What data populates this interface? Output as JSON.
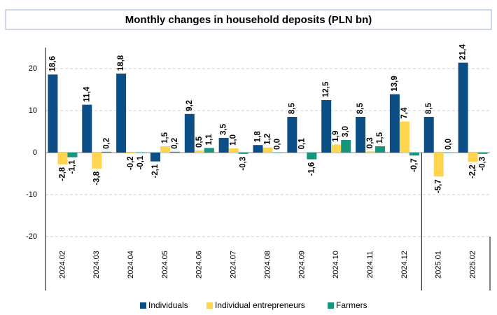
{
  "chart_data": {
    "type": "bar",
    "title": "Monthly changes in household deposits (PLN bn)",
    "categories": [
      "2024.02",
      "2024.03",
      "2024.04",
      "2024.05",
      "2024.06",
      "2024.07",
      "2024.08",
      "2024.09",
      "2024.10",
      "2024.11",
      "2024.12",
      "2025.01",
      "2025.02"
    ],
    "series": [
      {
        "name": "Individuals",
        "color": "#0b4f86",
        "values": [
          18.6,
          11.4,
          18.8,
          -2.1,
          9.2,
          3.5,
          1.8,
          8.5,
          12.5,
          8.5,
          13.9,
          8.5,
          21.4
        ],
        "value_labels": [
          "18,6",
          "11,4",
          "18,8",
          "-2,1",
          "9,2",
          "3,5",
          "1,8",
          "8,5",
          "12,5",
          "8,5",
          "13,9",
          "8,5",
          "21,4"
        ]
      },
      {
        "name": "Individual entrepreneurs",
        "color": "#ffd44f",
        "values": [
          -2.8,
          -3.8,
          -0.2,
          1.5,
          0.5,
          1.0,
          1.2,
          0.1,
          1.9,
          0.3,
          7.4,
          -5.7,
          -2.2
        ],
        "value_labels": [
          "-2,8",
          "-3,8",
          "-0,2",
          "1,5",
          "0,5",
          "1,0",
          "1,2",
          "0,1",
          "1,9",
          "0,3",
          "7,4",
          "-5,7",
          "-2,2"
        ]
      },
      {
        "name": "Farmers",
        "color": "#17957a",
        "values": [
          -1.1,
          0.2,
          -0.1,
          0.2,
          1.1,
          -0.3,
          0.0,
          -1.6,
          3.0,
          1.5,
          -0.7,
          0.0,
          -0.3
        ],
        "value_labels": [
          "-1,1",
          "0,2",
          "-0,1",
          "0,2",
          "1,1",
          "-0,3",
          "0,0",
          "-1,6",
          "3,0",
          "1,5",
          "-0,7",
          "0,0",
          "-0,3"
        ]
      }
    ],
    "ylim": [
      -20,
      25
    ],
    "yticks": [
      -20,
      -10,
      0,
      10,
      20
    ],
    "grid": true,
    "legend": "bottom"
  }
}
